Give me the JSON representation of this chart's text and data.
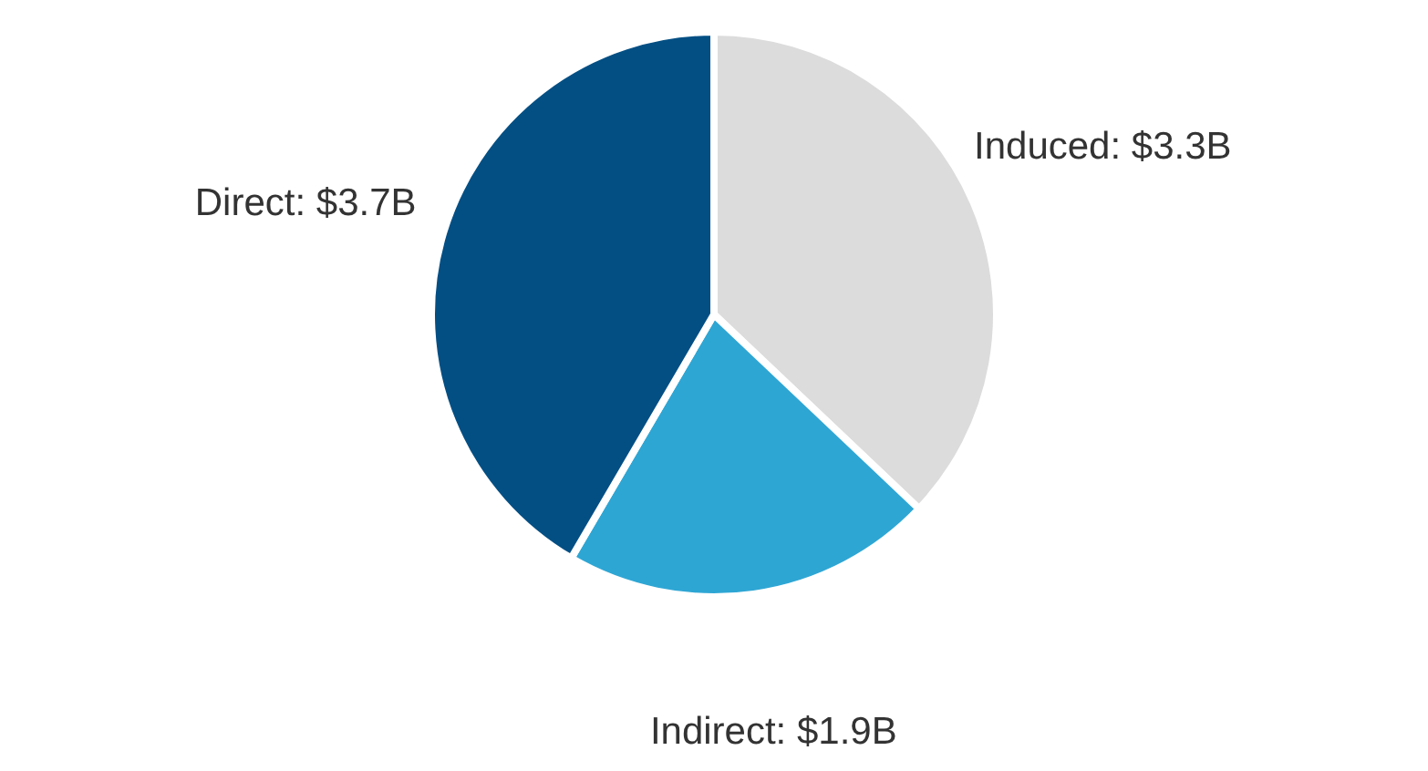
{
  "chart_data": {
    "type": "pie",
    "categories": [
      "Induced",
      "Indirect",
      "Direct"
    ],
    "values": [
      3.3,
      1.9,
      3.7
    ],
    "value_labels": [
      "$3.3B",
      "$1.9B",
      "$3.7B"
    ],
    "colors": [
      "#dcdcdc",
      "#2ea6d4",
      "#034f84"
    ],
    "legend": false
  }
}
